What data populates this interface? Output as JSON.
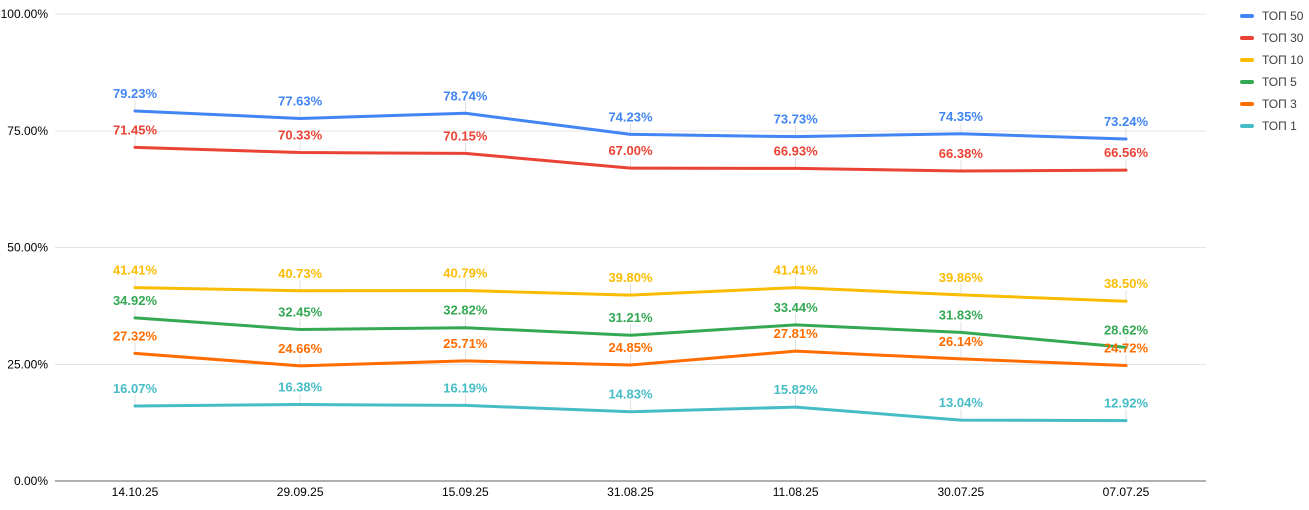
{
  "chart_data": {
    "type": "line",
    "title": "",
    "categories": [
      "14.10.25",
      "29.09.25",
      "15.09.25",
      "31.08.25",
      "11.08.25",
      "30.07.25",
      "07.07.25"
    ],
    "series": [
      {
        "name": "ТОП 50",
        "color": "#4285F4",
        "values": [
          79.23,
          77.63,
          78.74,
          74.23,
          73.73,
          74.35,
          73.24
        ],
        "labels": [
          "79.23%",
          "77.63%",
          "78.74%",
          "74.23%",
          "73.73%",
          "74.35%",
          "73.24%"
        ]
      },
      {
        "name": "ТОП 30",
        "color": "#EA4335",
        "values": [
          71.45,
          70.33,
          70.15,
          67.0,
          66.93,
          66.38,
          66.56
        ],
        "labels": [
          "71.45%",
          "70.33%",
          "70.15%",
          "67.00%",
          "66.93%",
          "66.38%",
          "66.56%"
        ]
      },
      {
        "name": "ТОП 10",
        "color": "#FBBC04",
        "values": [
          41.41,
          40.73,
          40.79,
          39.8,
          41.41,
          39.86,
          38.5
        ],
        "labels": [
          "41.41%",
          "40.73%",
          "40.79%",
          "39.80%",
          "41.41%",
          "39.86%",
          "38.50%"
        ]
      },
      {
        "name": "ТОП 5",
        "color": "#34A853",
        "values": [
          34.92,
          32.45,
          32.82,
          31.21,
          33.44,
          31.83,
          28.62
        ],
        "labels": [
          "34.92%",
          "32.45%",
          "32.82%",
          "31.21%",
          "33.44%",
          "31.83%",
          "28.62%"
        ]
      },
      {
        "name": "ТОП 3",
        "color": "#FF6D01",
        "values": [
          27.32,
          24.66,
          25.71,
          24.85,
          27.81,
          26.14,
          24.72
        ],
        "labels": [
          "27.32%",
          "24.66%",
          "25.71%",
          "24.85%",
          "27.81%",
          "26.14%",
          "24.72%"
        ]
      },
      {
        "name": "ТОП 1",
        "color": "#46BDC6",
        "values": [
          16.07,
          16.38,
          16.19,
          14.83,
          15.82,
          13.04,
          12.92
        ],
        "labels": [
          "16.07%",
          "16.38%",
          "16.19%",
          "14.83%",
          "15.82%",
          "13.04%",
          "12.92%"
        ]
      }
    ],
    "y_axis": {
      "ticks": [
        "100.00%",
        "75.00%",
        "50.00%",
        "25.00%",
        "0.00%"
      ],
      "min": 0,
      "max": 100
    },
    "xlabel": "",
    "ylabel": "",
    "grid": true,
    "legend_position": "right"
  },
  "style_colors": {
    "gridline": "#e4e4e4",
    "axis_line": "#616161",
    "leader_line": "#e0e0e0",
    "tick_text": "#000000",
    "legend_text": "#3c4043",
    "background": "#ffffff"
  }
}
